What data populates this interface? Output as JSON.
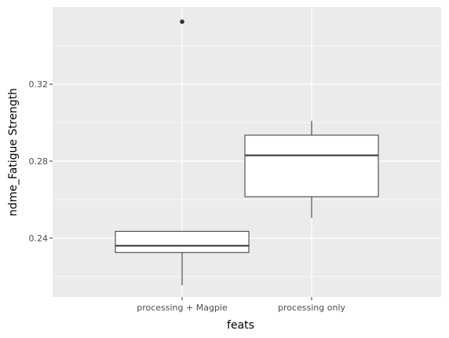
{
  "chart_data": {
    "type": "boxplot",
    "title": "",
    "xlabel": "feats",
    "ylabel": "ndme_Fatigue Strength",
    "ylim": [
      0.2093,
      0.3601
    ],
    "y_ticks": [
      0.24,
      0.28,
      0.32
    ],
    "y_tick_labels": [
      "0.24",
      "0.28",
      "0.32"
    ],
    "grid": true,
    "legend": "none",
    "colors": {
      "panel_background": "#EBEBEB",
      "grid_line": "#FFFFFF",
      "box_fill": "#FFFFFF",
      "box_stroke": "#333333",
      "outlier": "#333333"
    },
    "categories": [
      "processing + Magpie",
      "processing only"
    ],
    "boxes": [
      {
        "category": "processing + Magpie",
        "whisker_low": 0.2155,
        "q1": 0.2325,
        "median": 0.236,
        "q3": 0.2435,
        "whisker_high": 0.2435,
        "outliers": [
          0.3525
        ]
      },
      {
        "category": "processing only",
        "whisker_low": 0.2505,
        "q1": 0.2615,
        "median": 0.283,
        "q3": 0.2935,
        "whisker_high": 0.301,
        "outliers": []
      }
    ]
  }
}
